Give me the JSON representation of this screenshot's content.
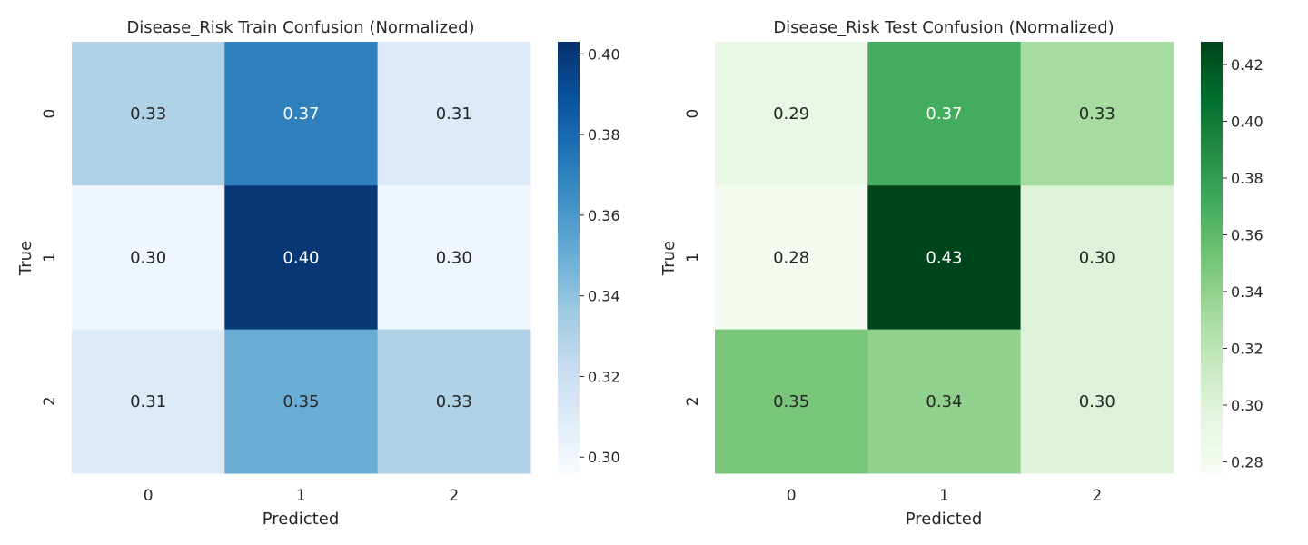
{
  "chart_data": [
    {
      "type": "heatmap",
      "title": "Disease_Risk Train Confusion (Normalized)",
      "xlabel": "Predicted",
      "ylabel": "True",
      "x_categories": [
        "0",
        "1",
        "2"
      ],
      "y_categories": [
        "0",
        "1",
        "2"
      ],
      "values": [
        [
          0.33,
          0.37,
          0.31
        ],
        [
          0.3,
          0.4,
          0.3
        ],
        [
          0.31,
          0.35,
          0.33
        ]
      ],
      "colormap": "Blues",
      "color_range": [
        0.296,
        0.403
      ],
      "colorbar_ticks": [
        "0.30",
        "0.32",
        "0.34",
        "0.36",
        "0.38",
        "0.40"
      ],
      "annotations": true
    },
    {
      "type": "heatmap",
      "title": "Disease_Risk Test Confusion (Normalized)",
      "xlabel": "Predicted",
      "ylabel": "True",
      "x_categories": [
        "0",
        "1",
        "2"
      ],
      "y_categories": [
        "0",
        "1",
        "2"
      ],
      "values": [
        [
          0.29,
          0.37,
          0.33
        ],
        [
          0.28,
          0.43,
          0.3
        ],
        [
          0.35,
          0.34,
          0.3
        ]
      ],
      "colormap": "Greens",
      "color_range": [
        0.276,
        0.428
      ],
      "colorbar_ticks": [
        "0.28",
        "0.30",
        "0.32",
        "0.34",
        "0.36",
        "0.38",
        "0.40",
        "0.42"
      ],
      "annotations": true
    }
  ]
}
